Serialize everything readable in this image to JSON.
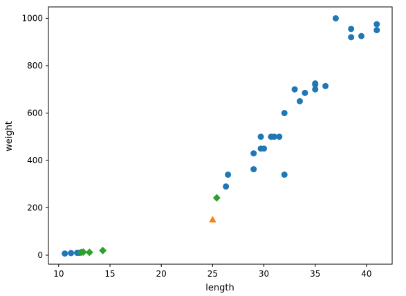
{
  "chart_data": {
    "type": "scatter",
    "title": "",
    "xlabel": "length",
    "ylabel": "weight",
    "xlim": [
      9.0,
      42.5
    ],
    "ylim": [
      -38,
      1048
    ],
    "xticks": [
      10,
      15,
      20,
      25,
      30,
      35,
      40
    ],
    "yticks": [
      0,
      200,
      400,
      600,
      800,
      1000
    ],
    "grid": false,
    "legend": "none",
    "series": [
      {
        "marker": "circle",
        "color": "#1f77b4",
        "points": [
          [
            10.6,
            7
          ],
          [
            11.2,
            9
          ],
          [
            11.8,
            10
          ],
          [
            12.0,
            10
          ],
          [
            12.2,
            12
          ],
          [
            26.3,
            290
          ],
          [
            26.5,
            340
          ],
          [
            29.0,
            363
          ],
          [
            29.0,
            430
          ],
          [
            29.7,
            450
          ],
          [
            29.7,
            500
          ],
          [
            30.0,
            450
          ],
          [
            30.7,
            500
          ],
          [
            31.0,
            500
          ],
          [
            31.5,
            500
          ],
          [
            32.0,
            340
          ],
          [
            32.0,
            600
          ],
          [
            33.0,
            700
          ],
          [
            33.5,
            650
          ],
          [
            34.0,
            685
          ],
          [
            35.0,
            700
          ],
          [
            35.0,
            725
          ],
          [
            35.0,
            720
          ],
          [
            36.0,
            714
          ],
          [
            37.0,
            1000
          ],
          [
            38.5,
            920
          ],
          [
            38.5,
            955
          ],
          [
            39.5,
            925
          ],
          [
            41.0,
            975
          ],
          [
            41.0,
            950
          ]
        ]
      },
      {
        "marker": "triangle",
        "color": "#ff7f0e",
        "points": [
          [
            25.0,
            150
          ]
        ]
      },
      {
        "marker": "diamond",
        "color": "#2ca02c",
        "points": [
          [
            25.4,
            242
          ],
          [
            12.2,
            12
          ],
          [
            12.4,
            13
          ],
          [
            13.0,
            12
          ],
          [
            14.3,
            19.7
          ]
        ]
      }
    ]
  }
}
